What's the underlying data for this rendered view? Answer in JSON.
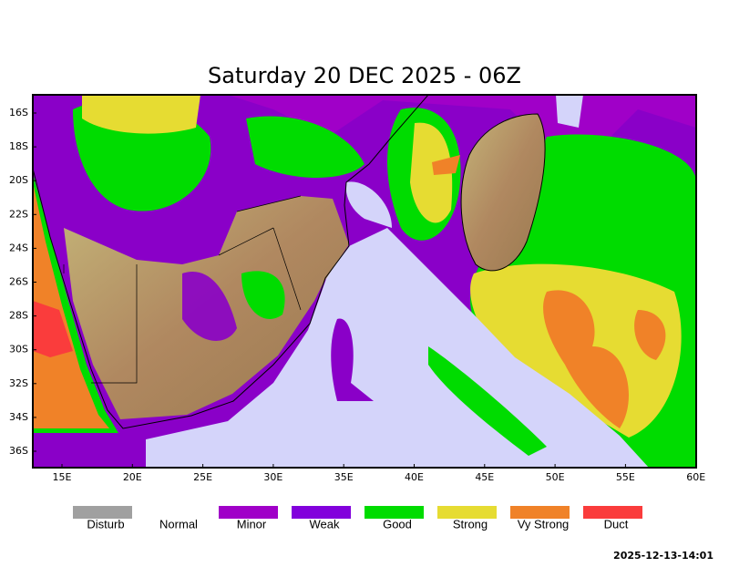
{
  "title": "Saturday 20 DEC 2025 - 06Z",
  "lat_labels": [
    "16S",
    "18S",
    "20S",
    "22S",
    "24S",
    "26S",
    "28S",
    "30S",
    "32S",
    "34S",
    "36S"
  ],
  "lon_labels": [
    "15E",
    "20E",
    "25E",
    "30E",
    "35E",
    "40E",
    "45E",
    "50E",
    "55E",
    "60E"
  ],
  "legend": [
    {
      "label": "Disturb",
      "color": "#a0a0a0"
    },
    {
      "label": "Normal",
      "color": "#ffffff"
    },
    {
      "label": "Minor",
      "color": "#a000c8"
    },
    {
      "label": "Weak",
      "color": "#8200dc"
    },
    {
      "label": "Good",
      "color": "#00dc00"
    },
    {
      "label": "Strong",
      "color": "#e6dc32"
    },
    {
      "label": "Vy Strong",
      "color": "#f08228"
    },
    {
      "label": "Duct",
      "color": "#fa3c3c"
    }
  ],
  "timestamp": "2025-12-13-14:01"
}
